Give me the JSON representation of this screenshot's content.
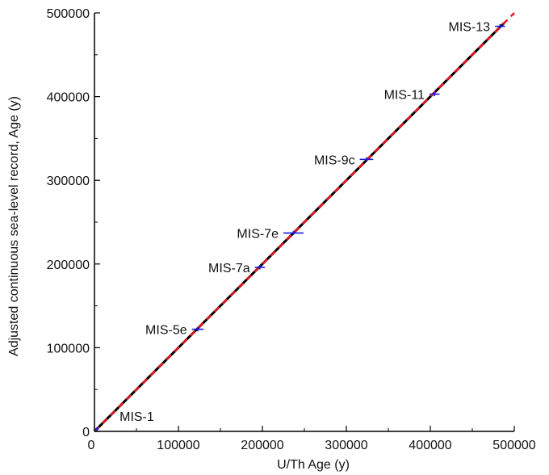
{
  "chart_data": {
    "type": "scatter",
    "xlabel": "U/Th Age (y)",
    "ylabel": "Adjusted continuous sea-level record, Age (y)",
    "xlim": [
      0,
      500000
    ],
    "ylim": [
      0,
      500000
    ],
    "x_ticks": [
      "0",
      "100000",
      "200000",
      "300000",
      "400000",
      "500000"
    ],
    "y_ticks": [
      "0",
      "100000",
      "200000",
      "300000",
      "400000",
      "500000"
    ],
    "grid": false,
    "points": [
      {
        "label": "MIS-1",
        "x": 3000,
        "y": 3000,
        "xerr": 2000,
        "yerr": 2000
      },
      {
        "label": "MIS-5e",
        "x": 123000,
        "y": 122000,
        "xerr": 7000,
        "yerr": 2500
      },
      {
        "label": "MIS-7a",
        "x": 197000,
        "y": 196000,
        "xerr": 6000,
        "yerr": 2500
      },
      {
        "label": "MIS-7e",
        "x": 237000,
        "y": 237000,
        "xerr": 12000,
        "yerr": 2500
      },
      {
        "label": "MIS-9c",
        "x": 324000,
        "y": 325000,
        "xerr": 8000,
        "yerr": 2500
      },
      {
        "label": "MIS-11",
        "x": 405000,
        "y": 403000,
        "xerr": 6000,
        "yerr": 2500
      },
      {
        "label": "MIS-13",
        "x": 483000,
        "y": 484000,
        "xerr": 6000,
        "yerr": 2500
      }
    ],
    "lines": [
      {
        "style": "solid",
        "color": "#000000",
        "x": [
          0,
          488000
        ],
        "y": [
          0,
          488000
        ]
      },
      {
        "style": "dashed",
        "color": "#e8141c",
        "x": [
          0,
          500000
        ],
        "y": [
          0,
          500000
        ]
      }
    ],
    "point_color": "#1a1adb"
  }
}
